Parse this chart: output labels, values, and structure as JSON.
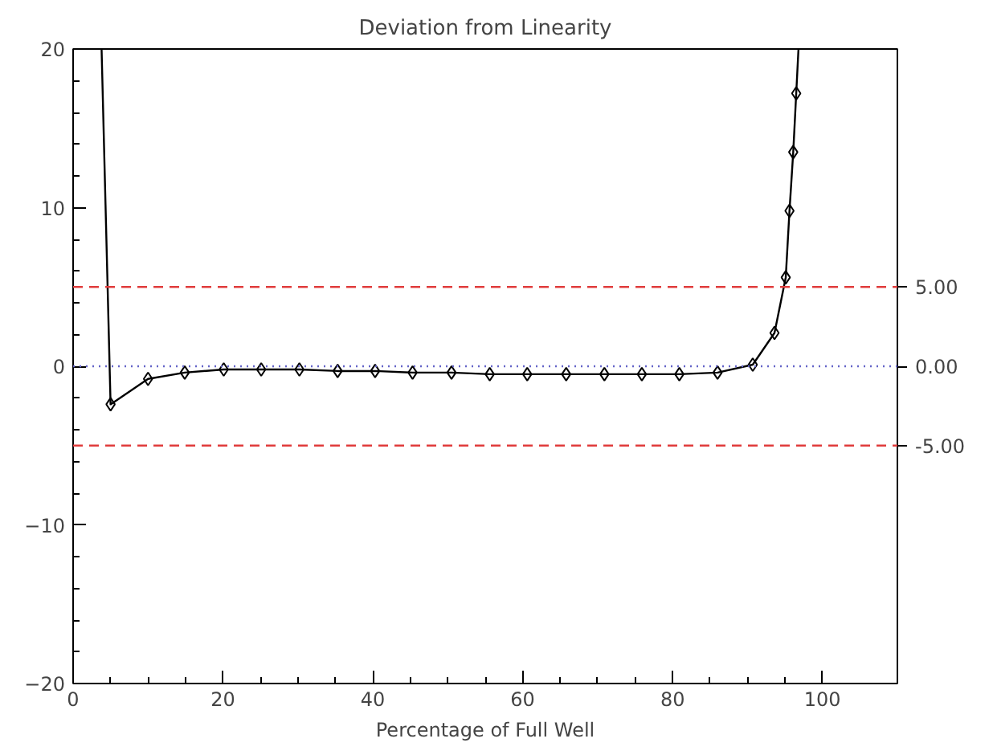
{
  "chart_data": {
    "type": "line",
    "title": "Deviation from Linearity",
    "xlabel": "Percentage of Full Well",
    "xlim": [
      0,
      110
    ],
    "xticks": [
      0,
      20,
      40,
      60,
      80,
      100
    ],
    "ylim": [
      -20,
      20
    ],
    "yticks": [
      -20,
      -10,
      0,
      10,
      20
    ],
    "grid": false,
    "series": [
      {
        "marker": "none",
        "color": "#000000",
        "x": [
          3.8,
          5.0,
          10.0,
          14.9,
          20.1,
          25.1,
          30.2,
          35.3,
          40.3,
          45.3,
          50.5,
          55.6,
          60.6,
          65.8,
          70.9,
          75.9,
          80.9,
          86.0,
          90.7,
          93.6,
          95.1,
          95.6,
          96.1,
          96.5,
          96.8
        ],
        "values": [
          20,
          -2.4,
          -0.8,
          -0.4,
          -0.2,
          -0.2,
          -0.2,
          -0.3,
          -0.3,
          -0.4,
          -0.4,
          -0.5,
          -0.5,
          -0.5,
          -0.5,
          -0.5,
          -0.5,
          -0.4,
          0.1,
          2.1,
          5.6,
          9.8,
          13.5,
          17.2,
          20
        ]
      },
      {
        "type": "scatter",
        "marker": "diamond",
        "color": "#000000",
        "x": [
          5.0,
          10.0,
          14.9,
          20.1,
          25.1,
          30.2,
          35.3,
          40.3,
          45.3,
          50.5,
          55.6,
          60.6,
          65.8,
          70.9,
          75.9,
          80.9,
          86.0,
          90.7,
          93.6,
          95.1,
          95.6,
          96.1,
          96.5
        ],
        "values": [
          -2.4,
          -0.8,
          -0.4,
          -0.2,
          -0.2,
          -0.2,
          -0.3,
          -0.3,
          -0.4,
          -0.4,
          -0.5,
          -0.5,
          -0.5,
          -0.5,
          -0.5,
          -0.5,
          -0.4,
          0.1,
          2.1,
          5.6,
          9.8,
          13.5,
          17.2
        ]
      }
    ],
    "ref_lines": [
      {
        "axis": "y",
        "value": 5,
        "label": "5.00",
        "color": "#e03c3c",
        "line_style": "dashed"
      },
      {
        "axis": "y",
        "value": 0,
        "label": "0.00",
        "color": "#6464c8",
        "line_style": "dotted"
      },
      {
        "axis": "y",
        "value": -5,
        "label": "-5.00",
        "color": "#e03c3c",
        "line_style": "dashed"
      }
    ]
  }
}
